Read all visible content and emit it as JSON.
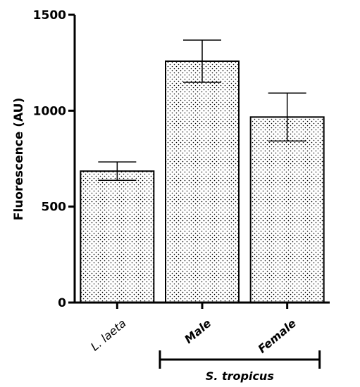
{
  "chart_data": {
    "type": "bar",
    "ylabel": "Fluorescence (AU)",
    "xlabel": "",
    "ylim": [
      0,
      1500
    ],
    "yticks": [
      0,
      500,
      1000,
      1500
    ],
    "categories": [
      {
        "label": "L. laeta",
        "italic": true,
        "bold": false
      },
      {
        "label": "Male",
        "italic": true,
        "bold": true
      },
      {
        "label": "Female",
        "italic": true,
        "bold": true
      }
    ],
    "values": [
      685,
      1258,
      967
    ],
    "error": [
      48,
      110,
      125
    ],
    "bar_pattern": "dotted",
    "group_bracket": {
      "label": "S. tropicus",
      "from_category": 1,
      "to_category": 2
    }
  }
}
